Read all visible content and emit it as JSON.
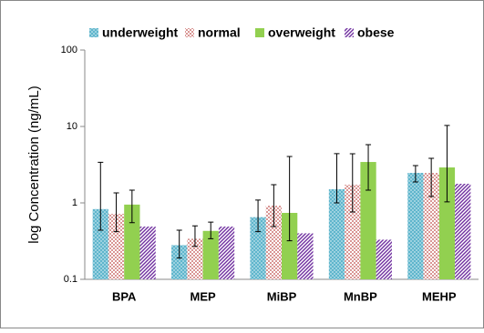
{
  "chart_data": {
    "type": "bar",
    "log_scale": true,
    "legend": "top",
    "y_label": "log Concentration (ng/mL)",
    "categories": [
      "BPA",
      "MEP",
      "MiBP",
      "MnBP",
      "MEHP"
    ],
    "series": [
      {
        "name": "underweight",
        "color": "#4bacc6",
        "pattern": "dots",
        "values": [
          0.83,
          0.28,
          0.65,
          1.51,
          2.47
        ],
        "err_minus": [
          0.39,
          0.09,
          0.23,
          0.51,
          0.59
        ],
        "err_plus": [
          2.57,
          0.16,
          0.44,
          2.9,
          0.61
        ]
      },
      {
        "name": "normal",
        "color": "#c0504d",
        "pattern": "checks",
        "values": [
          0.72,
          0.34,
          0.92,
          1.73,
          2.47
        ],
        "err_minus": [
          0.3,
          0.07,
          0.43,
          0.97,
          1.26
        ],
        "err_plus": [
          0.63,
          0.16,
          0.81,
          2.67,
          1.36
        ]
      },
      {
        "name": "overweight",
        "color": "#92d050",
        "pattern": "solid",
        "values": [
          0.95,
          0.43,
          0.74,
          3.43,
          2.91
        ],
        "err_minus": [
          0.4,
          0.09,
          0.42,
          1.96,
          1.88
        ],
        "err_plus": [
          0.52,
          0.13,
          3.31,
          2.34,
          7.4
        ]
      },
      {
        "name": "obese",
        "color": "#7030a0",
        "pattern": "diagonal",
        "values": [
          0.49,
          0.49,
          0.4,
          0.33,
          1.78
        ],
        "err_minus": [
          0,
          0,
          0,
          0,
          0
        ],
        "err_plus": [
          0,
          0,
          0,
          0,
          0
        ]
      }
    ],
    "ylim": [
      0.1,
      100
    ],
    "yticks": [
      0.1,
      1,
      10,
      100
    ],
    "grid": false
  }
}
